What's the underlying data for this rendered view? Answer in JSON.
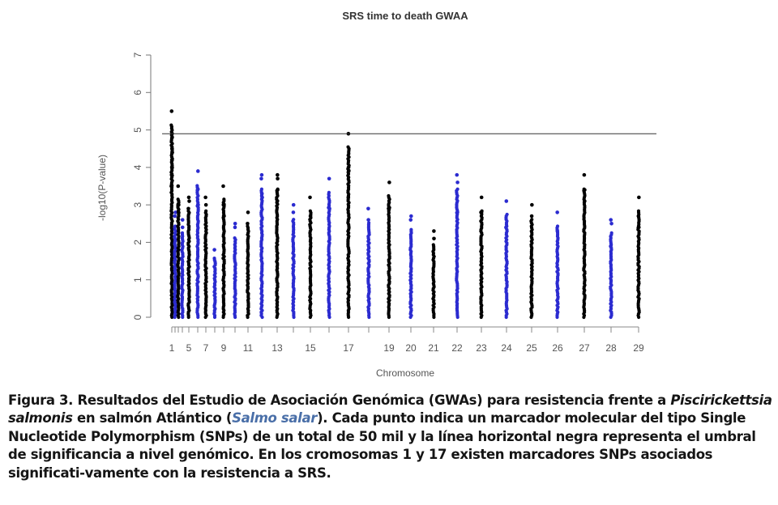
{
  "chart_data": {
    "type": "scatter",
    "title": "SRS time to death GWAA",
    "xlabel": "Chromosome",
    "ylabel": "-log10(P-value)",
    "ylim": [
      0,
      7
    ],
    "y_ticks": [
      "0",
      "1",
      "2",
      "3",
      "4",
      "5",
      "6",
      "7"
    ],
    "x_tick_labels": [
      "1",
      "5",
      "7",
      "9",
      "11",
      "13",
      "15",
      "17",
      "19",
      "20",
      "21",
      "22",
      "23",
      "24",
      "25",
      "26",
      "27",
      "28",
      "29"
    ],
    "threshold": 4.9,
    "colors": {
      "odd": "#000000",
      "even": "#2b2bd0"
    },
    "series": [
      {
        "chromosome": 1,
        "max": 5.5,
        "top": [
          5.5,
          4.9,
          4.8,
          4.5,
          4.4,
          4.2,
          4.0,
          3.8,
          3.5
        ]
      },
      {
        "chromosome": 2,
        "max": 2.8,
        "top": [
          2.8,
          2.7
        ]
      },
      {
        "chromosome": 3,
        "max": 3.5,
        "top": [
          3.5,
          3.0,
          2.8
        ]
      },
      {
        "chromosome": 4,
        "max": 2.6,
        "top": [
          2.6,
          2.4
        ]
      },
      {
        "chromosome": 5,
        "max": 3.2,
        "top": [
          3.2,
          3.1,
          2.9
        ]
      },
      {
        "chromosome": 6,
        "max": 3.9,
        "top": [
          3.9,
          3.4,
          3.0
        ]
      },
      {
        "chromosome": 7,
        "max": 3.2,
        "top": [
          3.2,
          3.0
        ]
      },
      {
        "chromosome": 8,
        "max": 1.8,
        "top": [
          1.8
        ]
      },
      {
        "chromosome": 9,
        "max": 3.5,
        "top": [
          3.5,
          3.0,
          2.7
        ]
      },
      {
        "chromosome": 10,
        "max": 2.5,
        "top": [
          2.5,
          2.4
        ]
      },
      {
        "chromosome": 11,
        "max": 2.8,
        "top": [
          2.8,
          2.5
        ]
      },
      {
        "chromosome": 12,
        "max": 3.8,
        "top": [
          3.8,
          3.7,
          3.3,
          3.2
        ]
      },
      {
        "chromosome": 13,
        "max": 3.8,
        "top": [
          3.8,
          3.7,
          3.4,
          3.1
        ]
      },
      {
        "chromosome": 14,
        "max": 3.0,
        "top": [
          3.0,
          2.8
        ]
      },
      {
        "chromosome": 15,
        "max": 3.2,
        "top": [
          3.2,
          2.7
        ]
      },
      {
        "chromosome": 16,
        "max": 3.7,
        "top": [
          3.7,
          2.9
        ]
      },
      {
        "chromosome": 17,
        "max": 4.9,
        "top": [
          4.9,
          4.0,
          3.9,
          3.2
        ]
      },
      {
        "chromosome": 18,
        "max": 2.9,
        "top": [
          2.9,
          2.6
        ]
      },
      {
        "chromosome": 19,
        "max": 3.6,
        "top": [
          3.6,
          2.9
        ]
      },
      {
        "chromosome": 20,
        "max": 2.7,
        "top": [
          2.7,
          2.6
        ]
      },
      {
        "chromosome": 21,
        "max": 2.3,
        "top": [
          2.3,
          2.1
        ]
      },
      {
        "chromosome": 22,
        "max": 3.8,
        "top": [
          3.8,
          3.6,
          2.8
        ]
      },
      {
        "chromosome": 23,
        "max": 3.2,
        "top": [
          3.2,
          2.8
        ]
      },
      {
        "chromosome": 24,
        "max": 3.1,
        "top": [
          3.1,
          2.4
        ]
      },
      {
        "chromosome": 25,
        "max": 3.0,
        "top": [
          3.0,
          2.7
        ]
      },
      {
        "chromosome": 26,
        "max": 2.8,
        "top": [
          2.8,
          2.3
        ]
      },
      {
        "chromosome": 27,
        "max": 3.8,
        "top": [
          3.8,
          3.4,
          3.1
        ]
      },
      {
        "chromosome": 28,
        "max": 2.6,
        "top": [
          2.6,
          2.5,
          1.9
        ]
      },
      {
        "chromosome": 29,
        "max": 3.2,
        "top": [
          3.2,
          2.7,
          2.4
        ]
      }
    ]
  },
  "caption": {
    "p1": "Figura 3. Resultados del Estudio de Asociación Genómica (GWAs) para resistencia frente a ",
    "p2_italic": "Piscirickettsia salmonis",
    "p3": " en salmón Atlántico (",
    "p4_species": "Salmo salar",
    "p5": ").  Cada punto indica un marcador molecular del tipo Single Nucleotide Polymorphism (SNPs) de un total de 50 mil y la línea horizontal negra representa el umbral de significancia a nivel genómico. En los cromosomas 1 y 17 existen marcadores SNPs asociados significati-vamente con la resistencia a SRS."
  }
}
